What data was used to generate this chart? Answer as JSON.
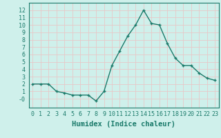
{
  "x": [
    0,
    1,
    2,
    3,
    4,
    5,
    6,
    7,
    8,
    9,
    10,
    11,
    12,
    13,
    14,
    15,
    16,
    17,
    18,
    19,
    20,
    21,
    22,
    23
  ],
  "y": [
    2,
    2,
    2,
    1,
    0.8,
    0.5,
    0.5,
    0.5,
    -0.3,
    1,
    4.5,
    6.5,
    8.5,
    10,
    12,
    10.2,
    10,
    7.5,
    5.5,
    4.5,
    4.5,
    3.5,
    2.8,
    2.5
  ],
  "xlabel": "Humidex (Indice chaleur)",
  "ylim": [
    -1.2,
    13
  ],
  "xlim": [
    -0.5,
    23.5
  ],
  "yticks": [
    0,
    1,
    2,
    3,
    4,
    5,
    6,
    7,
    8,
    9,
    10,
    11,
    12
  ],
  "ytick_labels": [
    "-0",
    "1",
    "2",
    "3",
    "4",
    "5",
    "6",
    "7",
    "8",
    "9",
    "10",
    "11",
    "12"
  ],
  "xticks": [
    0,
    1,
    2,
    3,
    4,
    5,
    6,
    7,
    8,
    9,
    10,
    11,
    12,
    13,
    14,
    15,
    16,
    17,
    18,
    19,
    20,
    21,
    22,
    23
  ],
  "line_color": "#1a7a6a",
  "marker": "+",
  "bg_color": "#cff0eb",
  "grid_color": "#e8c8c8",
  "xlabel_fontsize": 7.5,
  "tick_fontsize": 6.0,
  "linewidth": 1.0,
  "markersize": 3.5
}
